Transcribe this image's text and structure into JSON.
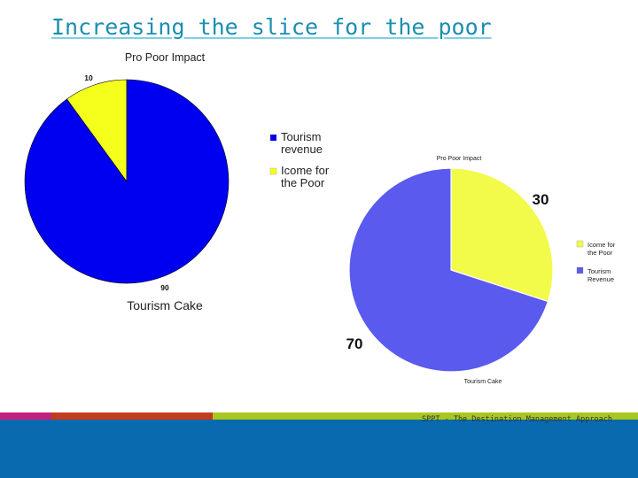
{
  "slide": {
    "title": "Increasing the slice for the poor",
    "footer": "SPPT - The Destination Management Approach"
  },
  "colors": {
    "title": "#1a8fb0",
    "footer_band": "#0a6ab0",
    "strips": [
      "#c3207e",
      "#c43c1c",
      "#a8c81e"
    ]
  },
  "chart_data": [
    {
      "type": "pie",
      "title": "Pro Poor Impact",
      "xlabel": "Tourism Cake",
      "legend_position": "right",
      "slices": [
        {
          "name": "Tourism revenue",
          "value": 90,
          "color": "#0000f0",
          "label": "90"
        },
        {
          "name": "Icome for the Poor",
          "value": 10,
          "color": "#f4ff1c",
          "label": "10"
        }
      ]
    },
    {
      "type": "pie",
      "title": "Pro Poor Impact",
      "xlabel": "Tourism Cake",
      "legend_position": "right",
      "slices": [
        {
          "name": "Icome for the Poor",
          "value": 30,
          "color": "#f2fa4a",
          "label": "30"
        },
        {
          "name": "Tourism Revenue",
          "value": 70,
          "color": "#5a5aee",
          "label": "70"
        }
      ]
    }
  ]
}
